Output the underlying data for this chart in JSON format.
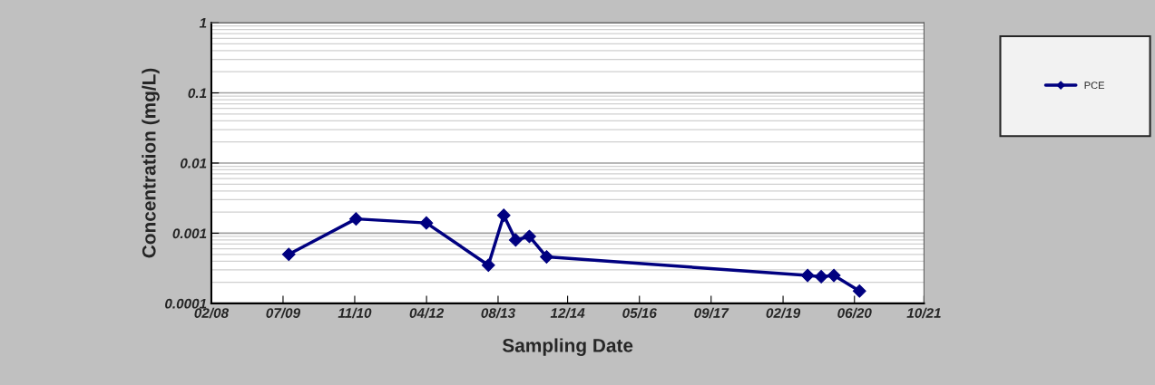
{
  "chart_data": {
    "type": "line",
    "xlabel": "Sampling Date",
    "ylabel": "Concentration (mg/L)",
    "x": [
      "2009-08-10",
      "2010-11-24",
      "2012-03-31",
      "2013-06-08",
      "2013-09-24",
      "2013-12-16",
      "2014-03-22",
      "2014-07-21",
      "2019-07-23",
      "2019-10-26",
      "2020-01-23",
      "2020-07-20"
    ],
    "series": [
      {
        "name": "PCE",
        "color": "#000080",
        "values": [
          0.0005,
          0.0016,
          0.0014,
          0.00035,
          0.0018,
          0.0008,
          0.0009,
          0.00046,
          0.00025,
          0.00024,
          0.00025,
          0.00015
        ]
      }
    ],
    "log": "y",
    "ylim": [
      0.0001,
      1
    ],
    "yticks": [
      0.0001,
      0.001,
      0.01,
      0.1,
      1
    ],
    "xlim": [
      "2008-02-15",
      "2021-10-15"
    ],
    "xticks": [
      {
        "value": "2008-02-15",
        "label": "02/08"
      },
      {
        "value": "2009-07-01",
        "label": "07/09"
      },
      {
        "value": "2010-11-15",
        "label": "11/10"
      },
      {
        "value": "2012-04-01",
        "label": "04/12"
      },
      {
        "value": "2013-08-15",
        "label": "08/13"
      },
      {
        "value": "2014-12-15",
        "label": "12/14"
      },
      {
        "value": "2016-05-01",
        "label": "05/16"
      },
      {
        "value": "2017-09-15",
        "label": "09/17"
      },
      {
        "value": "2019-02-01",
        "label": "02/19"
      },
      {
        "value": "2020-06-15",
        "label": "06/20"
      },
      {
        "value": "2021-10-15",
        "label": "10/21"
      }
    ],
    "grid": "y",
    "legend": "top right",
    "marker": "diamond",
    "line_style": "solid"
  }
}
